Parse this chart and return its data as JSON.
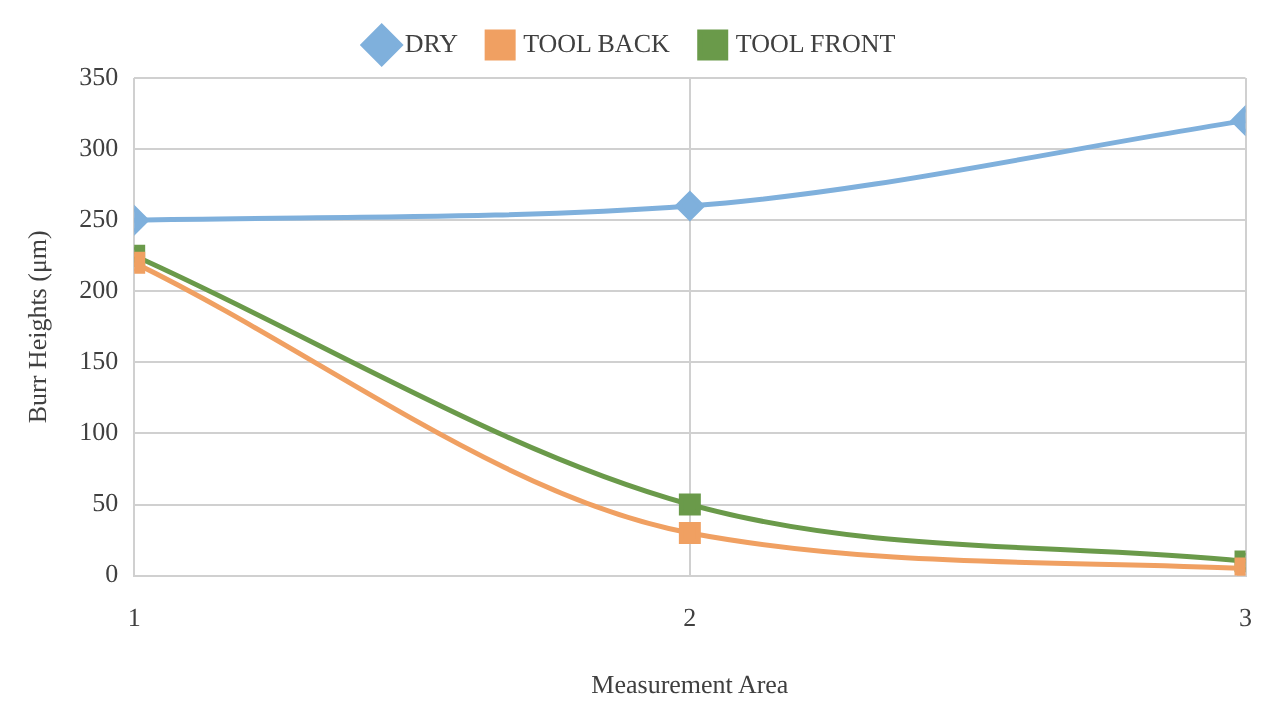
{
  "chart_data": {
    "type": "line",
    "xlabel": "Measurement Area",
    "ylabel": "Burr Heights (μm)",
    "x": [
      1,
      2,
      3
    ],
    "xlim": [
      1,
      3
    ],
    "xticks": [
      1,
      2,
      3
    ],
    "ylim": [
      0,
      350
    ],
    "yticks": [
      0,
      50,
      100,
      150,
      200,
      250,
      300,
      350
    ],
    "grid": true,
    "legend": "top",
    "series": [
      {
        "name": "DRY",
        "color": "#7fb0dc",
        "marker": "diamond",
        "values": [
          250,
          260,
          320
        ]
      },
      {
        "name": "TOOL BACK",
        "color": "#f0a062",
        "marker": "square",
        "values": [
          220,
          30,
          5
        ]
      },
      {
        "name": "TOOL FRONT",
        "color": "#6a9a4a",
        "marker": "square",
        "values": [
          225,
          50,
          10
        ]
      }
    ]
  }
}
